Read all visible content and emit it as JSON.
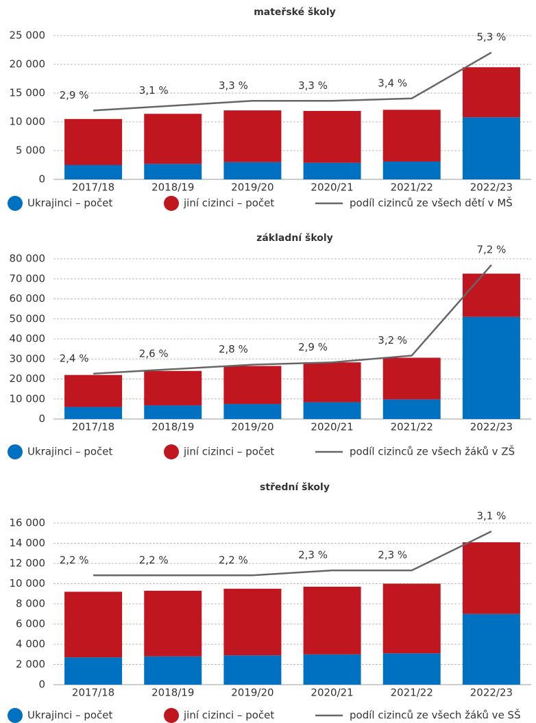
{
  "chart_data": [
    {
      "type": "bar",
      "stacked": true,
      "title": "mateřské školy",
      "categories": [
        "2017/18",
        "2018/19",
        "2019/20",
        "2020/21",
        "2021/22",
        "2022/23"
      ],
      "series": [
        {
          "name": "Ukrajinci – počet",
          "color": "#0070c0",
          "values": [
            2500,
            2700,
            3000,
            2900,
            3100,
            10800
          ]
        },
        {
          "name": "jiní cizinci – počet",
          "color": "#c0161f",
          "values": [
            8000,
            8700,
            9000,
            9000,
            9000,
            8700
          ]
        },
        {
          "name": "podíl cizinců ze všech dětí v MŠ",
          "type": "line",
          "axis": "y2",
          "color": "#666666",
          "values": [
            2.9,
            3.1,
            3.3,
            3.3,
            3.4,
            5.3
          ],
          "value_labels": [
            "2,9 %",
            "3,1 %",
            "3,3 %",
            "3,3 %",
            "3,4 %",
            "5,3 %"
          ]
        }
      ],
      "ylim": [
        0,
        25000
      ],
      "yticks": [
        0,
        {
          "value": 5000,
          "label": "5 000"
        },
        {
          "value": 10000,
          "label": "10 000"
        },
        {
          "value": 15000,
          "label": "15 000"
        },
        {
          "value": 20000,
          "label": "20 000"
        },
        {
          "value": 25000,
          "label": "25 000"
        }
      ],
      "y2lim": [
        0.05,
        6.0
      ],
      "grid": true,
      "legend": "bottom"
    },
    {
      "type": "bar",
      "stacked": true,
      "title": "základní  školy",
      "categories": [
        "2017/18",
        "2018/19",
        "2019/20",
        "2020/21",
        "2021/22",
        "2022/23"
      ],
      "series": [
        {
          "name": "Ukrajinci – počet",
          "color": "#0070c0",
          "values": [
            6000,
            6800,
            7500,
            8400,
            9800,
            51000
          ]
        },
        {
          "name": "jiní cizinci – počet",
          "color": "#c0161f",
          "values": [
            16000,
            17200,
            19000,
            19900,
            20800,
            21600
          ]
        },
        {
          "name": "podíl cizinců ze všech žáků v ZŠ",
          "type": "line",
          "axis": "y2",
          "color": "#666666",
          "values": [
            2.4,
            2.6,
            2.8,
            2.9,
            3.2,
            7.2
          ],
          "value_labels": [
            "2,4 %",
            "2,6 %",
            "2,8 %",
            "2,9 %",
            "3,2 %",
            "7,2 %"
          ]
        }
      ],
      "ylim": [
        0,
        80000
      ],
      "yticks": [
        0,
        {
          "value": 10000,
          "label": "10 000"
        },
        {
          "value": 20000,
          "label": "20 000"
        },
        {
          "value": 30000,
          "label": "30 000"
        },
        {
          "value": 40000,
          "label": "40 000"
        },
        {
          "value": 50000,
          "label": "50 000"
        },
        {
          "value": 60000,
          "label": "60 000"
        },
        {
          "value": 70000,
          "label": "70 000"
        },
        {
          "value": 80000,
          "label": "80 000"
        }
      ],
      "y2lim": [
        0.4,
        7.47
      ],
      "grid": true,
      "legend": "bottom"
    },
    {
      "type": "bar",
      "stacked": true,
      "title": "střední školy",
      "categories": [
        "2017/18",
        "2018/19",
        "2019/20",
        "2020/21",
        "2021/22",
        "2022/23"
      ],
      "series": [
        {
          "name": "Ukrajinci – počet",
          "color": "#0070c0",
          "values": [
            2700,
            2800,
            2900,
            3000,
            3100,
            7000
          ]
        },
        {
          "name": "jiní cizinci – počet",
          "color": "#c0161f",
          "values": [
            6500,
            6500,
            6600,
            6700,
            6900,
            7100
          ]
        },
        {
          "name": "podíl cizinců ze všech žáků ve SŠ",
          "type": "line",
          "axis": "y2",
          "color": "#666666",
          "values": [
            2.2,
            2.2,
            2.2,
            2.3,
            2.3,
            3.1
          ],
          "value_labels": [
            "2,2 %",
            "2,2 %",
            "2,2 %",
            "2,3 %",
            "2,3 %",
            "3,1 %"
          ]
        }
      ],
      "ylim": [
        0,
        16000
      ],
      "yticks": [
        0,
        {
          "value": 2000,
          "label": "2 000"
        },
        {
          "value": 4000,
          "label": "4 000"
        },
        {
          "value": 6000,
          "label": "6 000"
        },
        {
          "value": 8000,
          "label": "8 000"
        },
        {
          "value": 10000,
          "label": "10 000"
        },
        {
          "value": 12000,
          "label": "12 000"
        },
        {
          "value": 14000,
          "label": "14 000"
        },
        {
          "value": 16000,
          "label": "16 000"
        }
      ],
      "y2lim": [
        -0.04,
        3.27
      ],
      "grid": true,
      "legend": "bottom"
    }
  ]
}
